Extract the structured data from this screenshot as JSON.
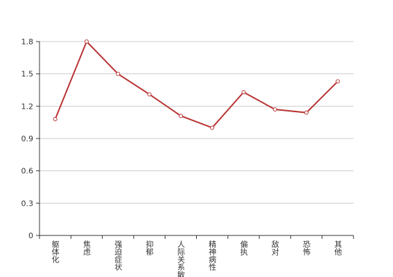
{
  "chart_data": {
    "type": "line",
    "categories": [
      "躯体化",
      "焦虑",
      "强迫症状",
      "抑郁",
      "人际关系敏感",
      "精神病性",
      "偏执",
      "敌对",
      "恐怖",
      "其他"
    ],
    "series": [
      {
        "color": "#b83232",
        "values": [
          1.08,
          1.8,
          1.5,
          1.31,
          1.11,
          1.0,
          1.33,
          1.17,
          1.14,
          1.43
        ]
      }
    ],
    "ylim": [
      0,
      1.8
    ],
    "yticks": [
      0,
      0.3,
      0.6,
      0.9,
      1.2,
      1.5,
      1.8
    ],
    "grid": true
  }
}
